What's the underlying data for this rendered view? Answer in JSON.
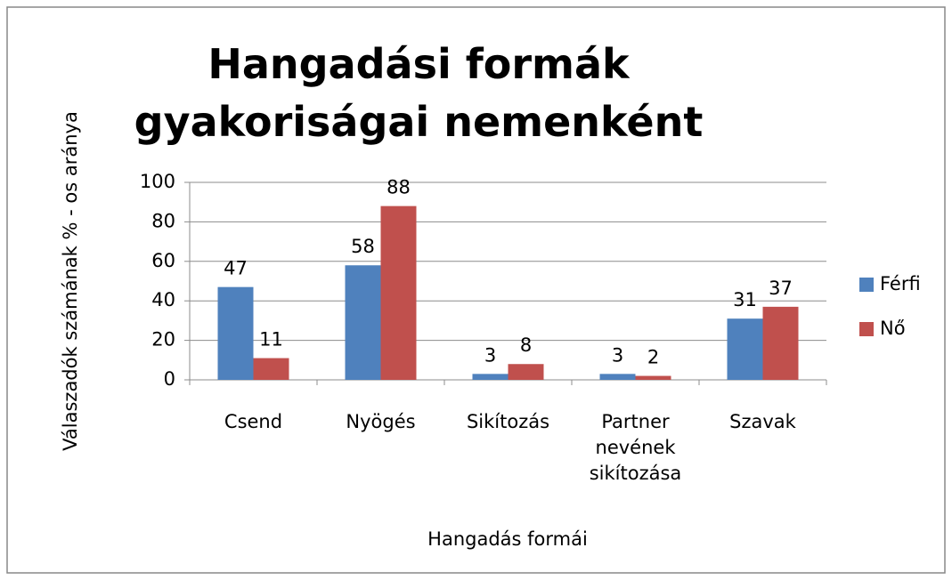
{
  "chart_data": {
    "type": "bar",
    "title": "Hangadási formák gyakoriságai nemenként",
    "x_label": "Hangadás formái",
    "y_label": "Válaszadók számának % - os aránya",
    "categories": [
      "Csend",
      "Nyögés",
      "Sikítozás",
      "Partner nevének sikítozása",
      "Szavak"
    ],
    "series": [
      {
        "name": "Férfi",
        "color": "#4f81bd",
        "values": [
          47,
          58,
          3,
          3,
          31
        ]
      },
      {
        "name": "Nő",
        "color": "#c0504d",
        "values": [
          11,
          88,
          8,
          2,
          37
        ]
      }
    ],
    "ylim": [
      0,
      100
    ],
    "yticks": [
      0,
      20,
      40,
      60,
      80,
      100
    ],
    "grid": true,
    "legend": "right"
  }
}
